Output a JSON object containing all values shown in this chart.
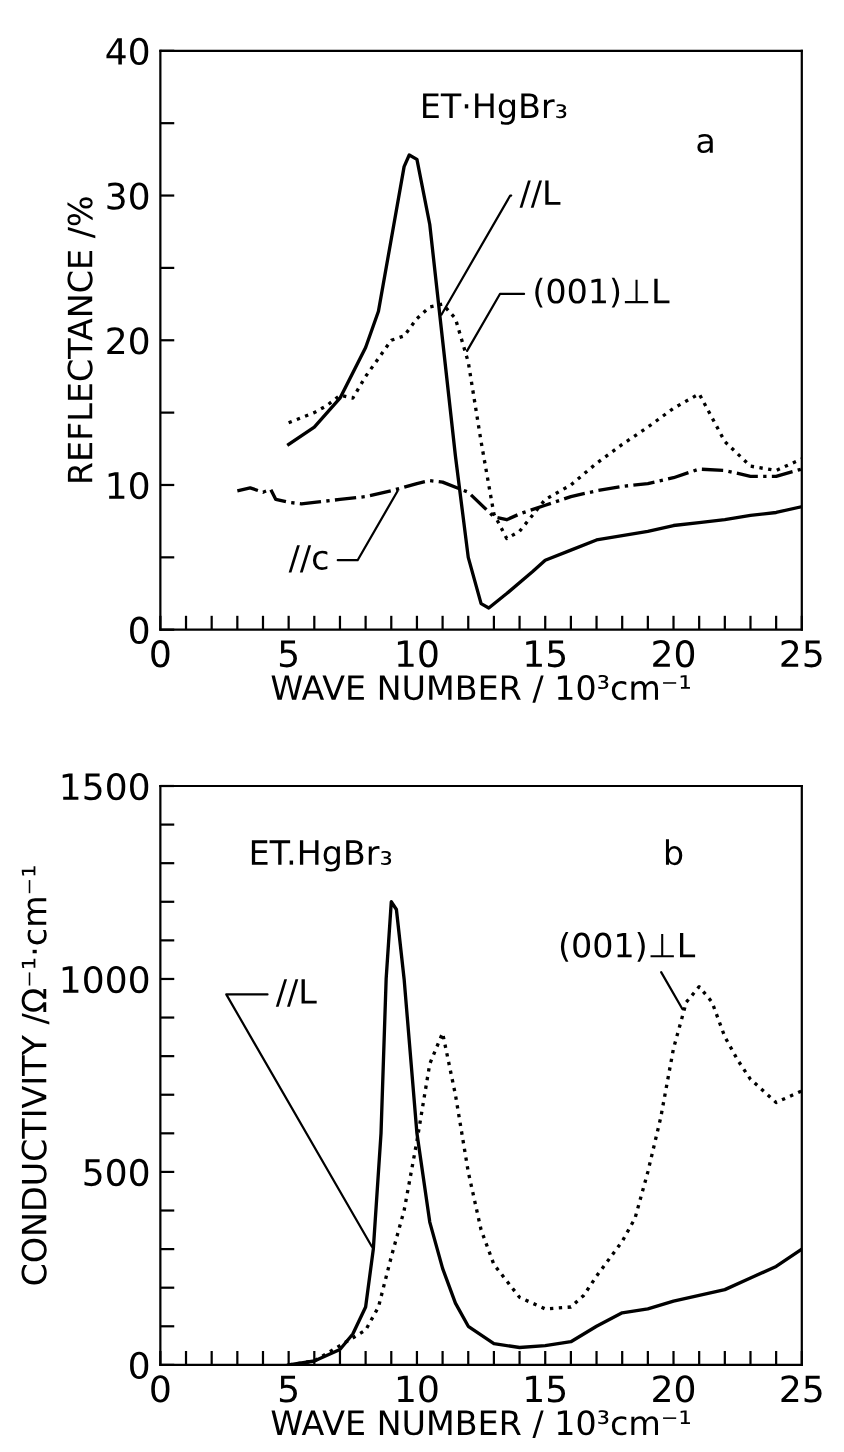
{
  "chart_data": [
    {
      "type": "line",
      "xlabel": "WAVE NUMBER / 10³cm⁻¹",
      "ylabel": "REFLECTANCE /%",
      "annotations": [
        "ET·HgBr₃",
        "a"
      ],
      "xlim": [
        0,
        25
      ],
      "ylim": [
        0,
        40
      ],
      "xticks": [
        0,
        {
          "value": 1,
          "label": null
        },
        {
          "value": 2,
          "label": null
        },
        {
          "value": 3,
          "label": null
        },
        {
          "value": 4,
          "label": null
        },
        5,
        {
          "value": 6,
          "label": null
        },
        {
          "value": 7,
          "label": null
        },
        {
          "value": 8,
          "label": null
        },
        {
          "value": 9,
          "label": null
        },
        10,
        {
          "value": 11,
          "label": null
        },
        {
          "value": 12,
          "label": null
        },
        {
          "value": 13,
          "label": null
        },
        {
          "value": 14,
          "label": null
        },
        15,
        {
          "value": 16,
          "label": null
        },
        {
          "value": 17,
          "label": null
        },
        {
          "value": 18,
          "label": null
        },
        {
          "value": 19,
          "label": null
        },
        20,
        {
          "value": 21,
          "label": null
        },
        {
          "value": 22,
          "label": null
        },
        {
          "value": 23,
          "label": null
        },
        {
          "value": 24,
          "label": null
        },
        25
      ],
      "yticks": [
        0,
        {
          "value": 5,
          "label": null
        },
        10,
        {
          "value": 15,
          "label": null
        },
        20,
        {
          "value": 25,
          "label": null
        },
        30,
        {
          "value": 35,
          "label": null
        },
        40
      ],
      "grid": false,
      "legend": false,
      "marker": "none",
      "series": [
        {
          "name": "//L",
          "color": "#000000",
          "line_style": "solid",
          "x": [
            5,
            6,
            7,
            8,
            8.5,
            9,
            9.5,
            9.7,
            10,
            10.5,
            11,
            11.5,
            12,
            12.5,
            12.8,
            13.5,
            14.5,
            15,
            16,
            17,
            18,
            19,
            20,
            21,
            22,
            23,
            24,
            25
          ],
          "values": [
            12.8,
            14,
            16,
            19.5,
            22,
            27,
            32,
            32.8,
            32.5,
            28,
            20,
            12,
            5,
            1.8,
            1.5,
            2.5,
            4,
            4.8,
            5.5,
            6.2,
            6.5,
            6.8,
            7.2,
            7.4,
            7.6,
            7.9,
            8.1,
            8.5
          ]
        },
        {
          "name": "(001)⊥L",
          "color": "#000000",
          "line_style": "dotted",
          "x": [
            5,
            6,
            6.5,
            7,
            7.5,
            8,
            9,
            9.5,
            10,
            10.5,
            11,
            11.5,
            12,
            12.5,
            13,
            13.5,
            14,
            15,
            16,
            17,
            18,
            19,
            20,
            21,
            22,
            23,
            24,
            25
          ],
          "values": [
            14.3,
            15,
            15.5,
            16.2,
            16,
            17.5,
            20,
            20.3,
            21.5,
            22.3,
            22.5,
            21.5,
            18.5,
            13,
            8,
            6.3,
            6.8,
            9,
            10,
            11.5,
            12.8,
            14,
            15.3,
            16.3,
            13,
            11.3,
            11,
            11.8
          ]
        },
        {
          "name": "//c",
          "color": "#000000",
          "line_style": "dashdot",
          "x": [
            3,
            3.5,
            4,
            4.3,
            4.5,
            5,
            5.5,
            6,
            7,
            8,
            9,
            10,
            10.5,
            11,
            12,
            13,
            13.5,
            14,
            15,
            16,
            17,
            18,
            19,
            20,
            21,
            22,
            23,
            24,
            25
          ],
          "values": [
            9.6,
            9.8,
            9.5,
            9.7,
            9,
            8.8,
            8.7,
            8.8,
            9,
            9.2,
            9.6,
            10.1,
            10.3,
            10.2,
            9.5,
            7.8,
            7.6,
            8,
            8.6,
            9.2,
            9.6,
            9.9,
            10.1,
            10.5,
            11.1,
            11,
            10.6,
            10.6,
            11.1
          ]
        }
      ]
    },
    {
      "type": "line",
      "xlabel": "WAVE NUMBER / 10³cm⁻¹",
      "ylabel": "CONDUCTIVITY /Ω⁻¹·cm⁻¹",
      "annotations": [
        "ET.HgBr₃",
        "b"
      ],
      "xlim": [
        0,
        25
      ],
      "ylim": [
        0,
        1500
      ],
      "xticks": [
        0,
        {
          "value": 1,
          "label": null
        },
        {
          "value": 2,
          "label": null
        },
        {
          "value": 3,
          "label": null
        },
        {
          "value": 4,
          "label": null
        },
        5,
        {
          "value": 6,
          "label": null
        },
        {
          "value": 7,
          "label": null
        },
        {
          "value": 8,
          "label": null
        },
        {
          "value": 9,
          "label": null
        },
        10,
        {
          "value": 11,
          "label": null
        },
        {
          "value": 12,
          "label": null
        },
        {
          "value": 13,
          "label": null
        },
        {
          "value": 14,
          "label": null
        },
        15,
        {
          "value": 16,
          "label": null
        },
        {
          "value": 17,
          "label": null
        },
        {
          "value": 18,
          "label": null
        },
        {
          "value": 19,
          "label": null
        },
        20,
        {
          "value": 21,
          "label": null
        },
        {
          "value": 22,
          "label": null
        },
        {
          "value": 23,
          "label": null
        },
        {
          "value": 24,
          "label": null
        },
        25
      ],
      "yticks": [
        0,
        {
          "value": 100,
          "label": null
        },
        {
          "value": 200,
          "label": null
        },
        {
          "value": 300,
          "label": null
        },
        {
          "value": 400,
          "label": null
        },
        500,
        {
          "value": 600,
          "label": null
        },
        {
          "value": 700,
          "label": null
        },
        {
          "value": 800,
          "label": null
        },
        {
          "value": 900,
          "label": null
        },
        1000,
        {
          "value": 1100,
          "label": null
        },
        {
          "value": 1200,
          "label": null
        },
        {
          "value": 1300,
          "label": null
        },
        {
          "value": 1400,
          "label": null
        },
        1500
      ],
      "grid": false,
      "legend": false,
      "marker": "none",
      "series": [
        {
          "name": "//L",
          "color": "#000000",
          "line_style": "solid",
          "x": [
            5,
            6,
            7,
            7.5,
            8,
            8.3,
            8.6,
            8.8,
            9,
            9.2,
            9.5,
            10,
            10.5,
            11,
            11.5,
            12,
            13,
            14,
            15,
            16,
            17,
            18,
            19,
            20,
            21,
            22,
            23,
            24,
            25
          ],
          "values": [
            0,
            10,
            40,
            80,
            150,
            300,
            600,
            1000,
            1200,
            1180,
            1000,
            600,
            370,
            250,
            160,
            100,
            55,
            45,
            50,
            60,
            100,
            135,
            145,
            165,
            180,
            195,
            225,
            255,
            300
          ]
        },
        {
          "name": "(001)⊥L",
          "color": "#000000",
          "line_style": "dotted",
          "x": [
            5,
            6,
            7,
            8,
            8.5,
            9,
            9.5,
            10,
            10.5,
            11,
            11.5,
            12,
            12.5,
            13,
            14,
            15,
            16,
            16.5,
            17,
            18,
            18.5,
            19,
            19.5,
            20,
            20.5,
            21,
            21.5,
            22,
            22.5,
            23,
            24,
            25
          ],
          "values": [
            0,
            10,
            50,
            90,
            150,
            280,
            400,
            580,
            780,
            860,
            700,
            500,
            350,
            260,
            175,
            145,
            150,
            180,
            230,
            320,
            380,
            500,
            640,
            820,
            940,
            980,
            940,
            850,
            790,
            740,
            680,
            710
          ]
        }
      ]
    }
  ]
}
